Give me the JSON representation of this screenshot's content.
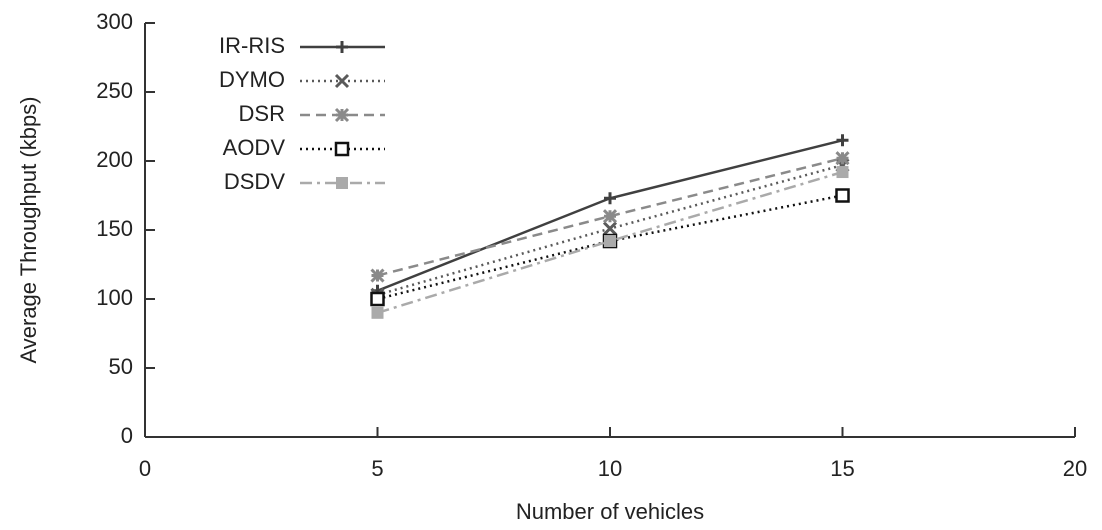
{
  "chart_data": {
    "type": "line",
    "x_label": "Number of vehicles",
    "y_label": "Average Throughput (kbps)",
    "x": [
      5,
      10,
      15
    ],
    "series": [
      {
        "name": "IR-RIS",
        "color": "#404040",
        "dash": "solid",
        "marker": "plus",
        "values": [
          106,
          173,
          215
        ]
      },
      {
        "name": "DYMO",
        "color": "#5a5a5a",
        "dash": "dotted",
        "marker": "cross",
        "values": [
          103,
          151,
          197
        ]
      },
      {
        "name": "DSR",
        "color": "#8a8a8a",
        "dash": "dashed",
        "marker": "star",
        "values": [
          117,
          160,
          202
        ]
      },
      {
        "name": "AODV",
        "color": "#111111",
        "dash": "dotted",
        "marker": "open-square",
        "values": [
          100,
          142,
          175
        ]
      },
      {
        "name": "DSDV",
        "color": "#aaaaaa",
        "dash": "dashdot",
        "marker": "filled-square",
        "values": [
          90,
          142,
          192
        ]
      }
    ],
    "xlim": [
      0,
      20
    ],
    "xticks": [
      0,
      5,
      10,
      15,
      20
    ],
    "ylim": [
      0,
      300
    ],
    "yticks": [
      0,
      50,
      100,
      150,
      200,
      250,
      300
    ],
    "legend": "upper-left"
  }
}
